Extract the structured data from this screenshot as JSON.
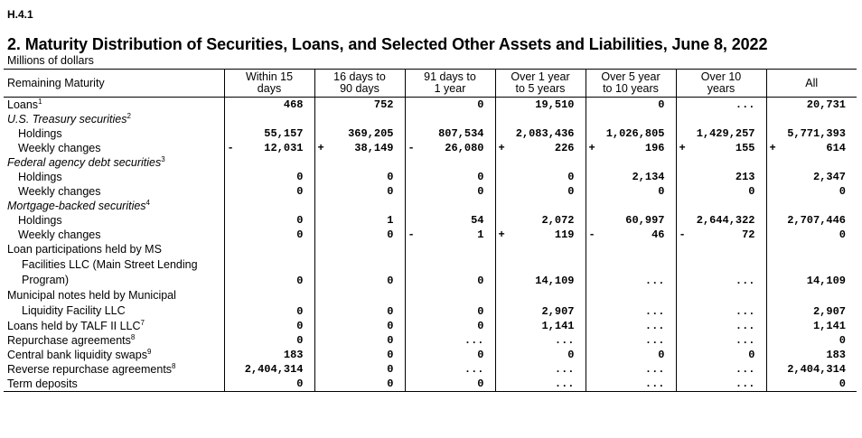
{
  "header": {
    "release_id": "H.4.1",
    "title": "2. Maturity Distribution of Securities, Loans, and Selected Other Assets and Liabilities, June 8, 2022",
    "units": "Millions of dollars"
  },
  "table": {
    "columns": [
      {
        "l1": "Remaining Maturity",
        "l2": ""
      },
      {
        "l1": "Within 15",
        "l2": "days"
      },
      {
        "l1": "16 days to",
        "l2": "90 days"
      },
      {
        "l1": "91 days to",
        "l2": "1 year"
      },
      {
        "l1": "Over 1 year",
        "l2": "to 5 years"
      },
      {
        "l1": "Over 5 year",
        "l2": "to 10 years"
      },
      {
        "l1": "Over 10",
        "l2": "years"
      },
      {
        "l1": "All",
        "l2": ""
      }
    ],
    "rows": [
      {
        "label": "Loans",
        "sup": "1",
        "style": "",
        "cells": [
          [
            "",
            "468"
          ],
          [
            "",
            "752"
          ],
          [
            "",
            "0"
          ],
          [
            "",
            "19,510"
          ],
          [
            "",
            "0"
          ],
          [
            "",
            "..."
          ],
          [
            "",
            "20,731"
          ]
        ]
      },
      {
        "label": "U.S. Treasury securities",
        "sup": "2",
        "style": "ital",
        "cells": null
      },
      {
        "label": "Holdings",
        "sup": "",
        "style": "ind1",
        "cells": [
          [
            "",
            "55,157"
          ],
          [
            "",
            "369,205"
          ],
          [
            "",
            "807,534"
          ],
          [
            "",
            "2,083,436"
          ],
          [
            "",
            "1,026,805"
          ],
          [
            "",
            "1,429,257"
          ],
          [
            "",
            "5,771,393"
          ]
        ]
      },
      {
        "label": "Weekly changes",
        "sup": "",
        "style": "ind1",
        "cells": [
          [
            "-",
            "12,031"
          ],
          [
            "+",
            "38,149"
          ],
          [
            "-",
            "26,080"
          ],
          [
            "+",
            "226"
          ],
          [
            "+",
            "196"
          ],
          [
            "+",
            "155"
          ],
          [
            "+",
            "614"
          ]
        ]
      },
      {
        "label": "Federal agency debt securities",
        "sup": "3",
        "style": "ital",
        "cells": null
      },
      {
        "label": "Holdings",
        "sup": "",
        "style": "ind1",
        "cells": [
          [
            "",
            "0"
          ],
          [
            "",
            "0"
          ],
          [
            "",
            "0"
          ],
          [
            "",
            "0"
          ],
          [
            "",
            "2,134"
          ],
          [
            "",
            "213"
          ],
          [
            "",
            "2,347"
          ]
        ]
      },
      {
        "label": "Weekly changes",
        "sup": "",
        "style": "ind1",
        "cells": [
          [
            "",
            "0"
          ],
          [
            "",
            "0"
          ],
          [
            "",
            "0"
          ],
          [
            "",
            "0"
          ],
          [
            "",
            "0"
          ],
          [
            "",
            "0"
          ],
          [
            "",
            "0"
          ]
        ]
      },
      {
        "label": "Mortgage-backed securities",
        "sup": "4",
        "style": "ital",
        "cells": null
      },
      {
        "label": "Holdings",
        "sup": "",
        "style": "ind1",
        "cells": [
          [
            "",
            "0"
          ],
          [
            "",
            "1"
          ],
          [
            "",
            "54"
          ],
          [
            "",
            "2,072"
          ],
          [
            "",
            "60,997"
          ],
          [
            "",
            "2,644,322"
          ],
          [
            "",
            "2,707,446"
          ]
        ]
      },
      {
        "label": "Weekly changes",
        "sup": "",
        "style": "ind1",
        "cells": [
          [
            "",
            "0"
          ],
          [
            "",
            "0"
          ],
          [
            "-",
            "1"
          ],
          [
            "+",
            "119"
          ],
          [
            "-",
            "46"
          ],
          [
            "-",
            "72"
          ],
          [
            "",
            "0"
          ]
        ]
      },
      {
        "label": "Loan participations held by MS",
        "label2": "Facilities LLC (Main Street Lending",
        "label3": "Program)",
        "sup": "5",
        "style": "multi",
        "cells": [
          [
            "",
            "0"
          ],
          [
            "",
            "0"
          ],
          [
            "",
            "0"
          ],
          [
            "",
            "14,109"
          ],
          [
            "",
            "..."
          ],
          [
            "",
            "..."
          ],
          [
            "",
            "14,109"
          ]
        ]
      },
      {
        "label": "Municipal notes held by Municipal",
        "label2": "Liquidity Facility LLC",
        "sup": "6",
        "style": "multi",
        "cells": [
          [
            "",
            "0"
          ],
          [
            "",
            "0"
          ],
          [
            "",
            "0"
          ],
          [
            "",
            "2,907"
          ],
          [
            "",
            "..."
          ],
          [
            "",
            "..."
          ],
          [
            "",
            "2,907"
          ]
        ]
      },
      {
        "label": "Loans held by TALF II LLC",
        "sup": "7",
        "style": "",
        "cells": [
          [
            "",
            "0"
          ],
          [
            "",
            "0"
          ],
          [
            "",
            "0"
          ],
          [
            "",
            "1,141"
          ],
          [
            "",
            "..."
          ],
          [
            "",
            "..."
          ],
          [
            "",
            "1,141"
          ]
        ]
      },
      {
        "label": "Repurchase agreements",
        "sup": "8",
        "style": "",
        "cells": [
          [
            "",
            "0"
          ],
          [
            "",
            "0"
          ],
          [
            "",
            "..."
          ],
          [
            "",
            "..."
          ],
          [
            "",
            "..."
          ],
          [
            "",
            "..."
          ],
          [
            "",
            "0"
          ]
        ]
      },
      {
        "label": "Central bank liquidity swaps",
        "sup": "9",
        "style": "",
        "cells": [
          [
            "",
            "183"
          ],
          [
            "",
            "0"
          ],
          [
            "",
            "0"
          ],
          [
            "",
            "0"
          ],
          [
            "",
            "0"
          ],
          [
            "",
            "0"
          ],
          [
            "",
            "183"
          ]
        ]
      },
      {
        "label": "Reverse repurchase agreements",
        "sup": "8",
        "style": "",
        "cells": [
          [
            "",
            "2,404,314"
          ],
          [
            "",
            "0"
          ],
          [
            "",
            "..."
          ],
          [
            "",
            "..."
          ],
          [
            "",
            "..."
          ],
          [
            "",
            "..."
          ],
          [
            "",
            "2,404,314"
          ]
        ]
      },
      {
        "label": "Term deposits",
        "sup": "",
        "style": "",
        "cells": [
          [
            "",
            "0"
          ],
          [
            "",
            "0"
          ],
          [
            "",
            "0"
          ],
          [
            "",
            "..."
          ],
          [
            "",
            "..."
          ],
          [
            "",
            "..."
          ],
          [
            "",
            "0"
          ]
        ]
      }
    ]
  }
}
